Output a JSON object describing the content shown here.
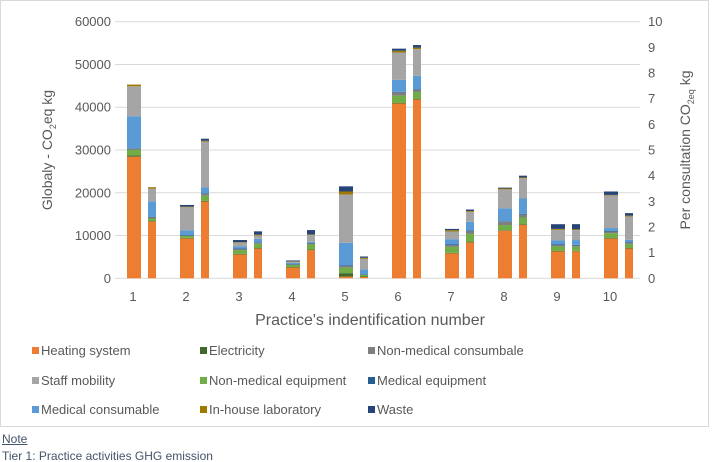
{
  "chart_data": {
    "type": "bar",
    "stacked": true,
    "categories": [
      "1",
      "2",
      "3",
      "4",
      "5",
      "6",
      "7",
      "8",
      "9",
      "10"
    ],
    "xlabel": "Practice's indentification number",
    "ylabel": "Globaly - CO2eq kg",
    "ylabel_parts": {
      "pre": "Globaly - CO",
      "sub": "2",
      "post": "eq kg"
    },
    "y2label": "Per consultation CO2eq kg",
    "y2label_parts": {
      "pre": "Per consultation CO",
      "sub": "2eq",
      "post": " kg"
    },
    "ylim": [
      0,
      60000
    ],
    "y_ticks": [
      "0",
      "10000",
      "20000",
      "30000",
      "40000",
      "50000",
      "60000"
    ],
    "y2lim": [
      0,
      10
    ],
    "y2_ticks": [
      "0",
      "1",
      "2",
      "3",
      "4",
      "5",
      "6",
      "7",
      "8",
      "9",
      "10"
    ],
    "grid": true,
    "legend_position": "bottom",
    "series_order_bottom_to_top": [
      "Heating system",
      "Electricity",
      "Non-medical equipment",
      "Non-medical consumbale",
      "Medical equipment",
      "Medical consumable",
      "Staff mobility",
      "In-house laboratory",
      "Waste"
    ],
    "legend": [
      {
        "name": "Heating system",
        "color": "#ED7D31"
      },
      {
        "name": "Electricity",
        "color": "#43682B"
      },
      {
        "name": "Non-medical consumbale",
        "color": "#7F7F7F"
      },
      {
        "name": "Staff mobility",
        "color": "#A5A5A5"
      },
      {
        "name": "Non-medical equipment",
        "color": "#70AD47"
      },
      {
        "name": "Medical equipment",
        "color": "#255E91"
      },
      {
        "name": "Medical consumable",
        "color": "#5B9BD5"
      },
      {
        "name": "In-house laboratory",
        "color": "#9E7A00"
      },
      {
        "name": "Waste",
        "color": "#264478"
      }
    ],
    "global_series": [
      {
        "name": "Heating system",
        "values": [
          28450,
          9350,
          5600,
          2570,
          400,
          40900,
          5850,
          11150,
          6300,
          9300
        ]
      },
      {
        "name": "Electricity",
        "values": [
          300,
          100,
          100,
          50,
          800,
          100,
          100,
          100,
          100,
          100
        ]
      },
      {
        "name": "Non-medical equipment",
        "values": [
          1250,
          450,
          900,
          550,
          1300,
          1700,
          1400,
          1200,
          1050,
          1150
        ]
      },
      {
        "name": "Non-medical consumbale",
        "values": [
          300,
          150,
          300,
          100,
          400,
          800,
          500,
          800,
          400,
          450
        ]
      },
      {
        "name": "Medical equipment",
        "values": [
          100,
          50,
          50,
          50,
          100,
          100,
          50,
          100,
          50,
          50
        ]
      },
      {
        "name": "Medical consumable",
        "values": [
          7500,
          1100,
          500,
          300,
          5300,
          2800,
          1250,
          3000,
          950,
          700
        ]
      },
      {
        "name": "Staff mobility",
        "values": [
          7000,
          5450,
          900,
          300,
          11300,
          6400,
          1800,
          4450,
          2500,
          7650
        ]
      },
      {
        "name": "In-house laboratory",
        "values": [
          400,
          100,
          100,
          50,
          700,
          400,
          300,
          200,
          200,
          100
        ]
      },
      {
        "name": "Waste",
        "values": [
          0,
          400,
          500,
          200,
          1200,
          500,
          300,
          200,
          1100,
          800
        ]
      }
    ],
    "per_consultation_series": [
      {
        "name": "Heating system",
        "values": [
          2.21,
          2.99,
          1.16,
          1.1,
          0.05,
          6.97,
          1.4,
          2.08,
          1.05,
          1.16
        ]
      },
      {
        "name": "Electricity",
        "values": [
          0.02,
          0.03,
          0.02,
          0.02,
          0.02,
          0.03,
          0.03,
          0.03,
          0.02,
          0.02
        ]
      },
      {
        "name": "Non-medical equipment",
        "values": [
          0.1,
          0.2,
          0.17,
          0.2,
          0.06,
          0.26,
          0.3,
          0.26,
          0.16,
          0.16
        ]
      },
      {
        "name": "Non-medical consumbale",
        "values": [
          0.06,
          0.08,
          0.04,
          0.05,
          0.02,
          0.1,
          0.12,
          0.13,
          0.06,
          0.06
        ]
      },
      {
        "name": "Medical equipment",
        "values": [
          0.01,
          0.01,
          0.01,
          0.01,
          0.01,
          0.01,
          0.01,
          0.01,
          0.01,
          0.01
        ]
      },
      {
        "name": "Medical consumable",
        "values": [
          0.6,
          0.23,
          0.14,
          0.04,
          0.18,
          0.52,
          0.34,
          0.6,
          0.19,
          0.09
        ]
      },
      {
        "name": "Staff mobility",
        "values": [
          0.5,
          1.79,
          0.13,
          0.27,
          0.42,
          1.04,
          0.39,
          0.79,
          0.39,
          0.91
        ]
      },
      {
        "name": "In-house laboratory",
        "values": [
          0.05,
          0.03,
          0.03,
          0.02,
          0.04,
          0.06,
          0.03,
          0.03,
          0.03,
          0.03
        ]
      },
      {
        "name": "Waste",
        "values": [
          0,
          0.08,
          0.13,
          0.17,
          0.05,
          0.1,
          0.06,
          0.07,
          0.2,
          0.1
        ]
      }
    ]
  },
  "note": {
    "title": "Note",
    "text": "Tier 1: Practice activities GHG emission"
  }
}
